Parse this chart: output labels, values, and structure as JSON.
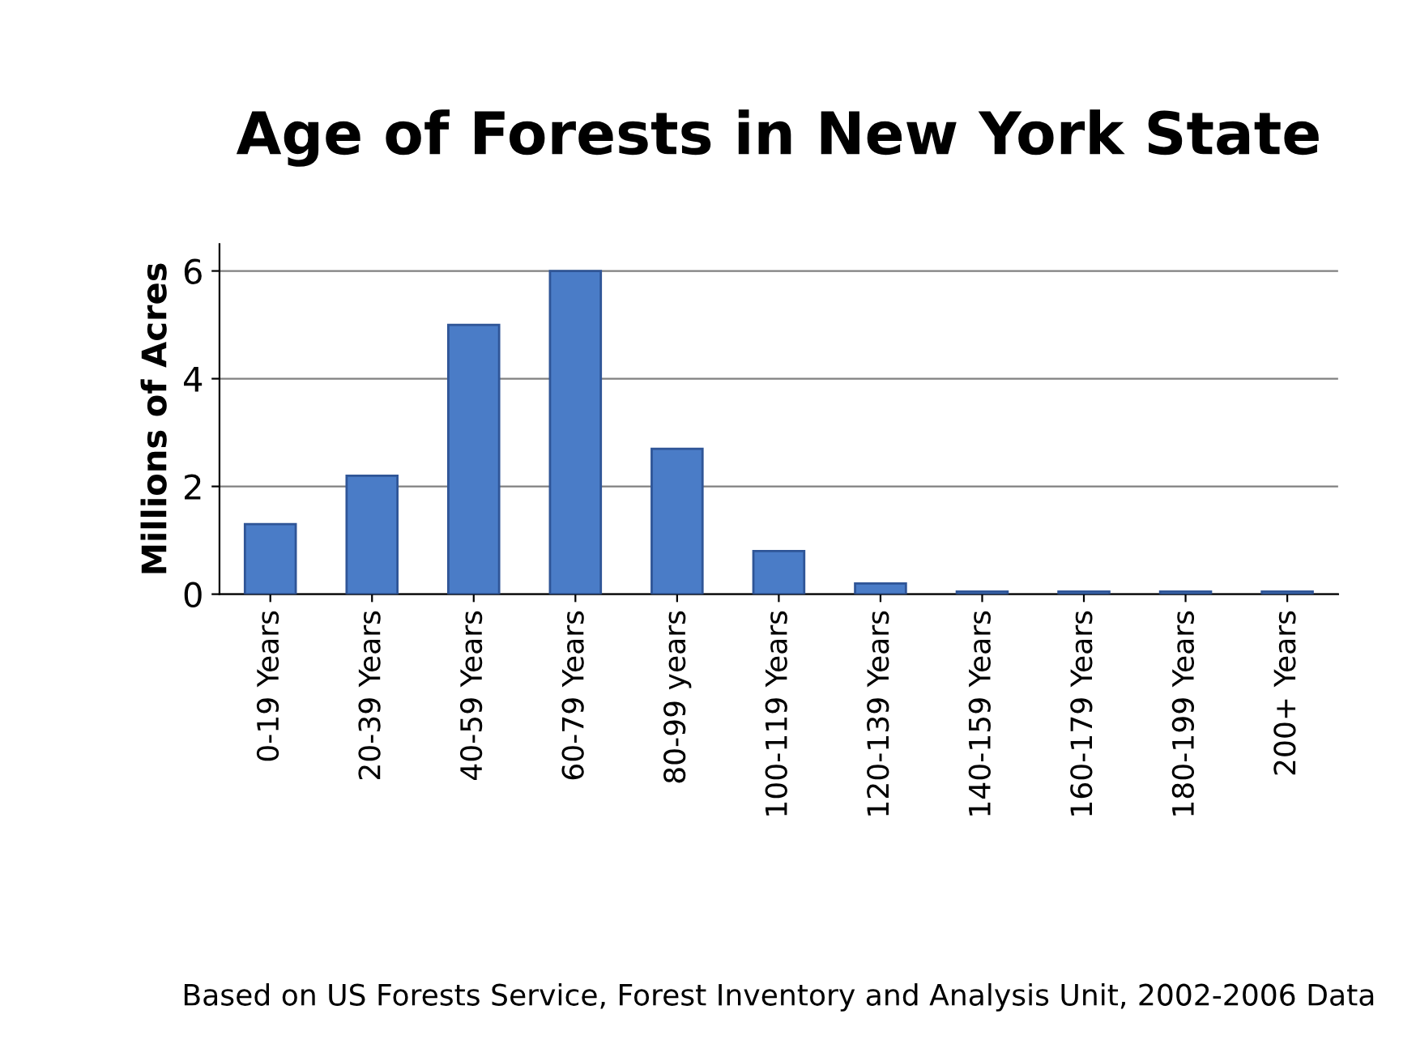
{
  "chart_data": {
    "type": "bar",
    "title": "Age of Forests in New York State",
    "ylabel": "Millions of Acres",
    "categories": [
      "0-19 Years",
      "20-39 Years",
      "40-59 Years",
      "60-79 Years",
      "80-99 years",
      "100-119 Years",
      "120-139 Years",
      "140-159 Years",
      "160-179 Years",
      "180-199 Years",
      "200+ Years"
    ],
    "values": [
      1.3,
      2.2,
      5.0,
      6.0,
      2.7,
      0.8,
      0.2,
      0.05,
      0.05,
      0.05,
      0.05
    ],
    "color": "#4a7cc7",
    "ylim": [
      0,
      6.5
    ],
    "yticks": [
      0,
      2,
      4,
      6
    ],
    "grid": "y",
    "annotations": [
      "Based on US Forests Service, Forest Inventory and Analysis Unit, 2002-2006 Data"
    ]
  }
}
